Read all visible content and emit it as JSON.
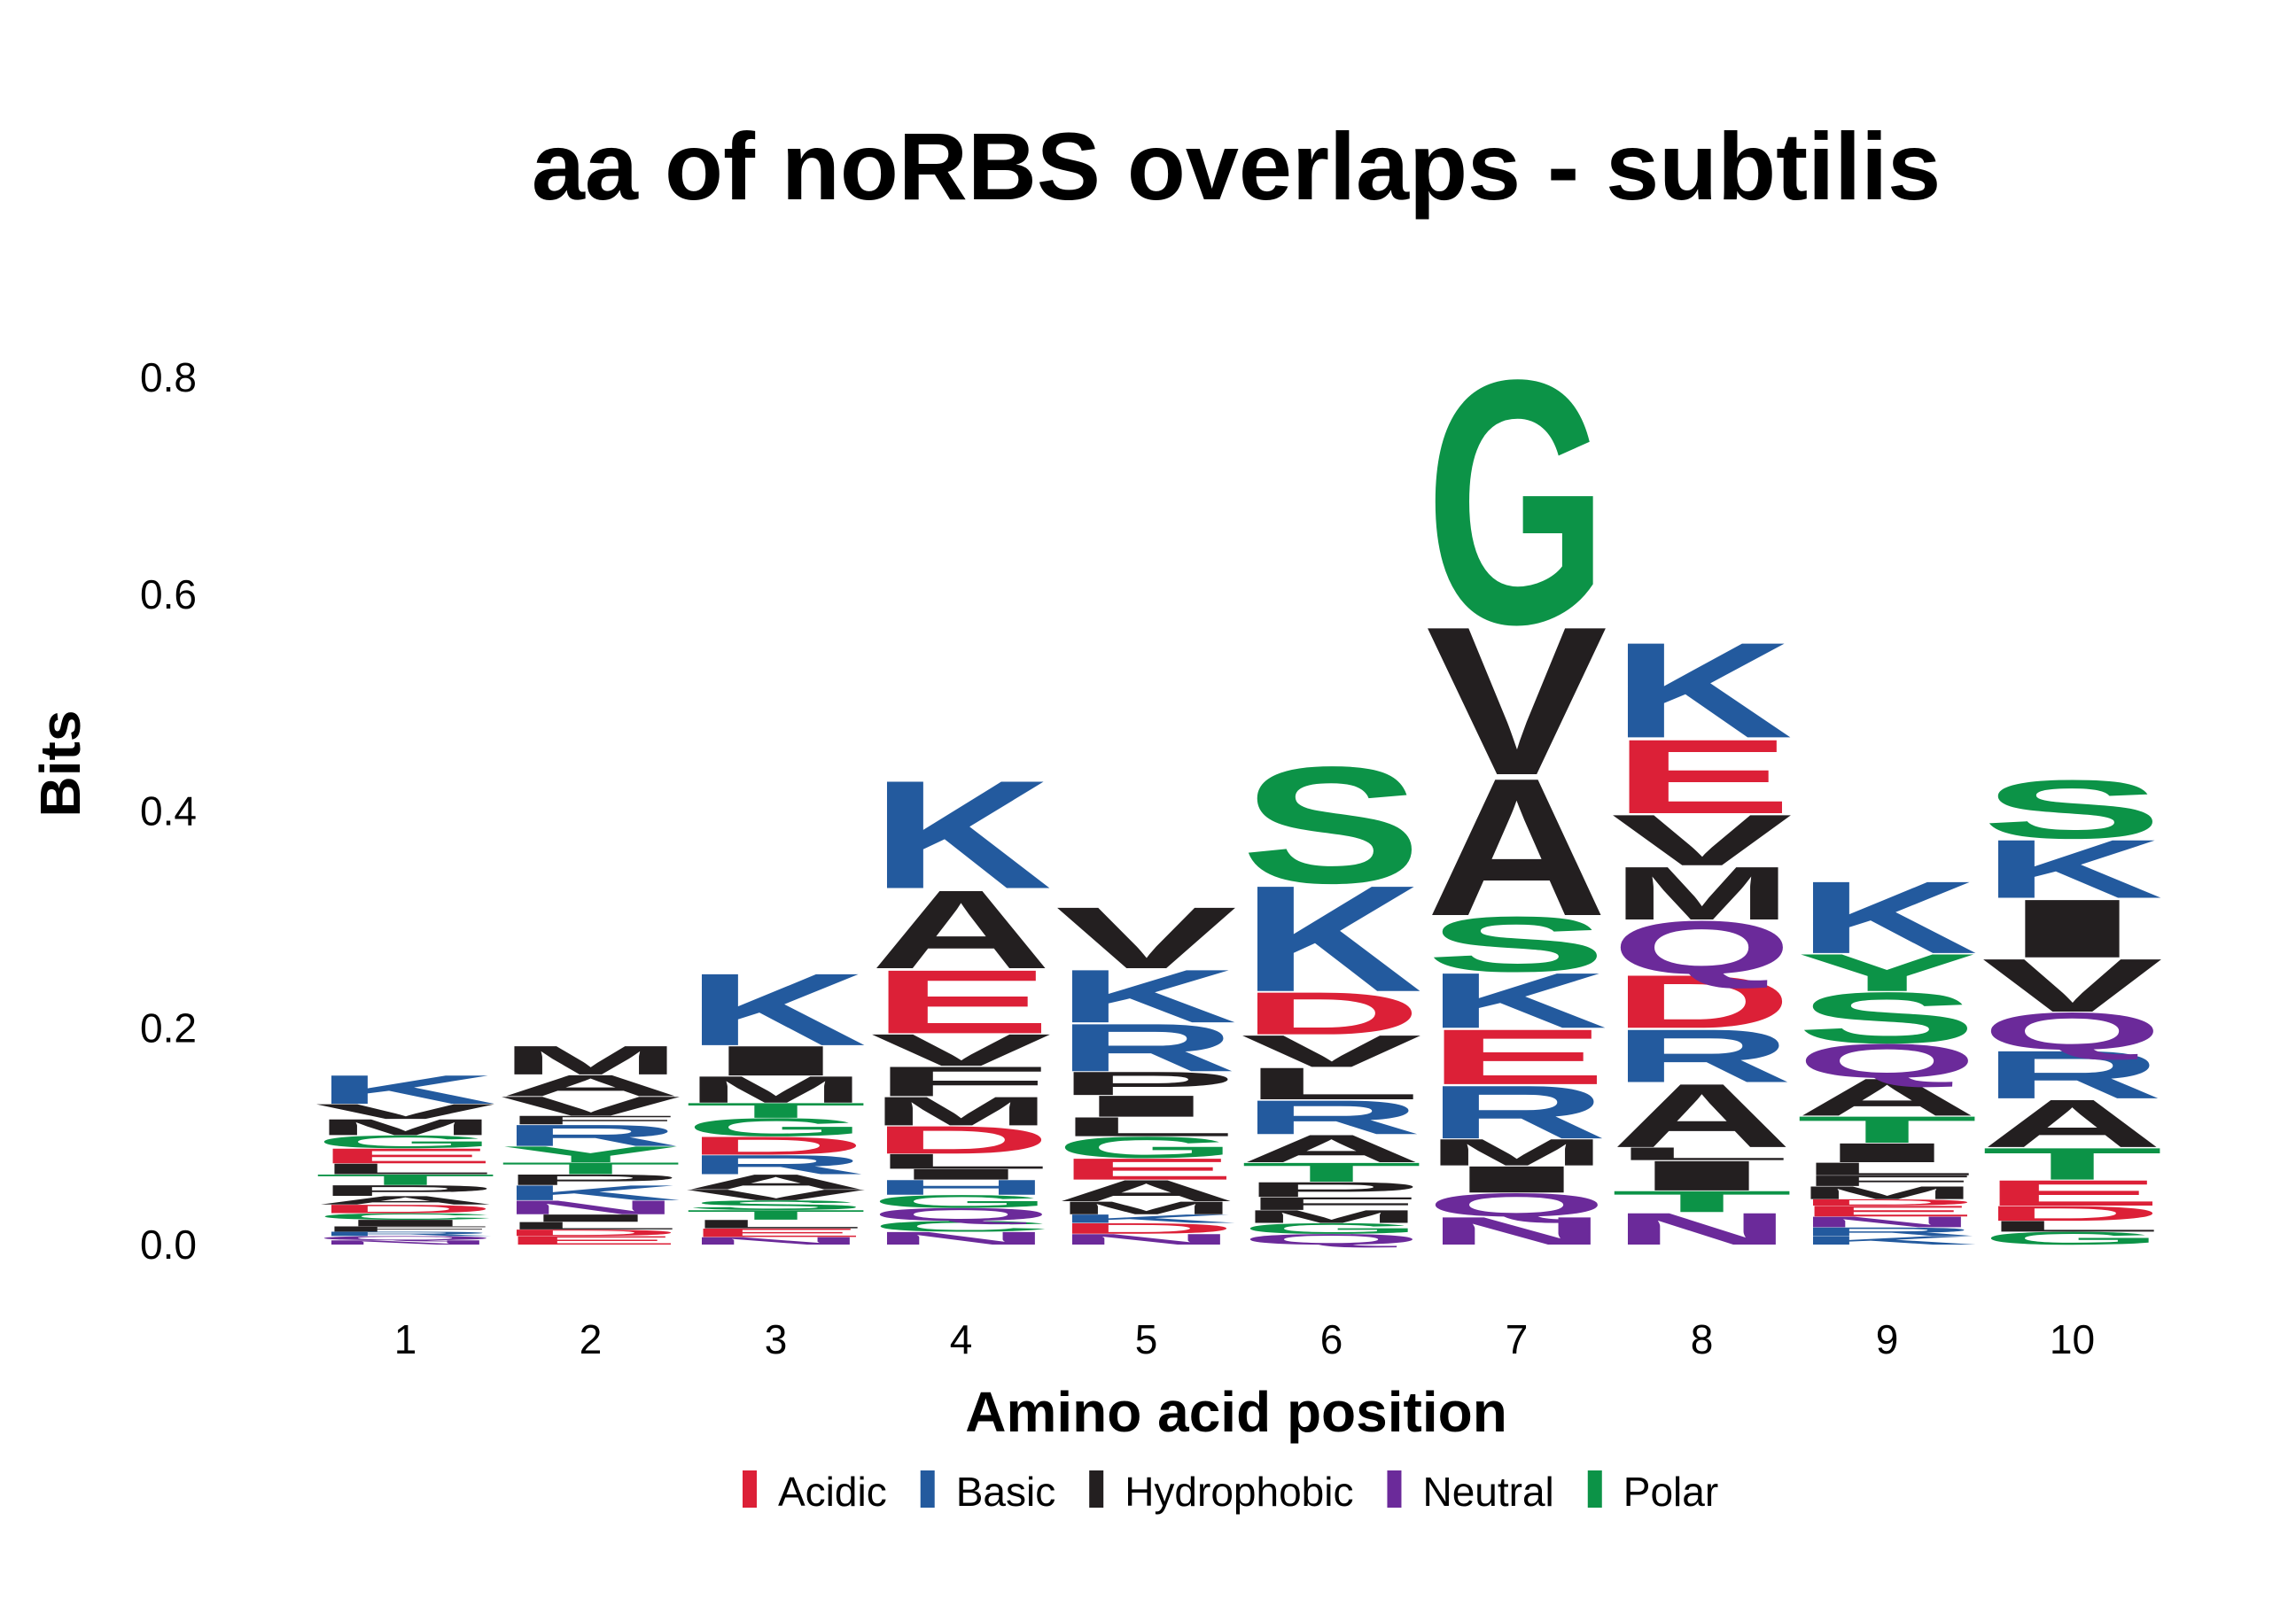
{
  "chart_data": {
    "type": "sequence-logo",
    "title": "aa of noRBS overlaps - subtilis",
    "xlabel": "Amino acid position",
    "ylabel": "Bits",
    "ylim": [
      0,
      0.85
    ],
    "yticks": [
      "0.0",
      "0.2",
      "0.4",
      "0.6",
      "0.8"
    ],
    "categories": [
      "1",
      "2",
      "3",
      "4",
      "5",
      "6",
      "7",
      "8",
      "9",
      "10"
    ],
    "legend_position": "bottom",
    "legend": [
      {
        "name": "Acidic",
        "color": "#DC2037"
      },
      {
        "name": "Basic",
        "color": "#235A9E"
      },
      {
        "name": "Hydrophobic",
        "color": "#231F20"
      },
      {
        "name": "Neutral",
        "color": "#6B2A9A"
      },
      {
        "name": "Polar",
        "color": "#0C9347"
      }
    ],
    "groups": {
      "A": "Hydrophobic",
      "F": "Hydrophobic",
      "I": "Hydrophobic",
      "L": "Hydrophobic",
      "M": "Hydrophobic",
      "P": "Hydrophobic",
      "V": "Hydrophobic",
      "W": "Hydrophobic",
      "D": "Acidic",
      "E": "Acidic",
      "H": "Basic",
      "K": "Basic",
      "R": "Basic",
      "N": "Neutral",
      "Q": "Neutral",
      "C": "Polar",
      "G": "Polar",
      "S": "Polar",
      "T": "Polar",
      "Y": "Polar"
    },
    "positions": [
      {
        "position": "1",
        "letters": [
          {
            "aa": "N",
            "bits": 0.004
          },
          {
            "aa": "Q",
            "bits": 0.004
          },
          {
            "aa": "R",
            "bits": 0.004
          },
          {
            "aa": "F",
            "bits": 0.005
          },
          {
            "aa": "I",
            "bits": 0.006
          },
          {
            "aa": "C",
            "bits": 0.006
          },
          {
            "aa": "D",
            "bits": 0.008
          },
          {
            "aa": "A",
            "bits": 0.008
          },
          {
            "aa": "P",
            "bits": 0.01
          },
          {
            "aa": "T",
            "bits": 0.01
          },
          {
            "aa": "L",
            "bits": 0.01
          },
          {
            "aa": "E",
            "bits": 0.014
          },
          {
            "aa": "G",
            "bits": 0.012
          },
          {
            "aa": "M",
            "bits": 0.015
          },
          {
            "aa": "V",
            "bits": 0.014
          },
          {
            "aa": "K",
            "bits": 0.027
          }
        ]
      },
      {
        "position": "2",
        "letters": [
          {
            "aa": "E",
            "bits": 0.008
          },
          {
            "aa": "D",
            "bits": 0.006
          },
          {
            "aa": "L",
            "bits": 0.007
          },
          {
            "aa": "I",
            "bits": 0.007
          },
          {
            "aa": "N",
            "bits": 0.013
          },
          {
            "aa": "K",
            "bits": 0.014
          },
          {
            "aa": "P",
            "bits": 0.01
          },
          {
            "aa": "T",
            "bits": 0.011
          },
          {
            "aa": "Y",
            "bits": 0.015
          },
          {
            "aa": "R",
            "bits": 0.02
          },
          {
            "aa": "F",
            "bits": 0.008
          },
          {
            "aa": "V",
            "bits": 0.018
          },
          {
            "aa": "A",
            "bits": 0.02
          },
          {
            "aa": "M",
            "bits": 0.027
          }
        ]
      },
      {
        "position": "3",
        "letters": [
          {
            "aa": "N",
            "bits": 0.007
          },
          {
            "aa": "E",
            "bits": 0.008
          },
          {
            "aa": "L",
            "bits": 0.008
          },
          {
            "aa": "T",
            "bits": 0.009
          },
          {
            "aa": "S",
            "bits": 0.009
          },
          {
            "aa": "V",
            "bits": 0.01
          },
          {
            "aa": "A",
            "bits": 0.014
          },
          {
            "aa": "R",
            "bits": 0.018
          },
          {
            "aa": "D",
            "bits": 0.017
          },
          {
            "aa": "G",
            "bits": 0.017
          },
          {
            "aa": "T",
            "bits": 0.014
          },
          {
            "aa": "M",
            "bits": 0.025
          },
          {
            "aa": "I",
            "bits": 0.028
          },
          {
            "aa": "K",
            "bits": 0.068
          }
        ]
      },
      {
        "position": "4",
        "letters": [
          {
            "aa": "N",
            "bits": 0.012
          },
          {
            "aa": "C",
            "bits": 0.01
          },
          {
            "aa": "Q",
            "bits": 0.012
          },
          {
            "aa": "G",
            "bits": 0.012
          },
          {
            "aa": "H",
            "bits": 0.014
          },
          {
            "aa": "I",
            "bits": 0.01
          },
          {
            "aa": "L",
            "bits": 0.014
          },
          {
            "aa": "D",
            "bits": 0.026
          },
          {
            "aa": "M",
            "bits": 0.027
          },
          {
            "aa": "F",
            "bits": 0.028
          },
          {
            "aa": "V",
            "bits": 0.03
          },
          {
            "aa": "E",
            "bits": 0.06
          },
          {
            "aa": "A",
            "bits": 0.074
          },
          {
            "aa": "K",
            "bits": 0.102
          }
        ]
      },
      {
        "position": "5",
        "letters": [
          {
            "aa": "N",
            "bits": 0.01
          },
          {
            "aa": "D",
            "bits": 0.01
          },
          {
            "aa": "K",
            "bits": 0.008
          },
          {
            "aa": "M",
            "bits": 0.012
          },
          {
            "aa": "A",
            "bits": 0.02
          },
          {
            "aa": "E",
            "bits": 0.02
          },
          {
            "aa": "G",
            "bits": 0.02
          },
          {
            "aa": "L",
            "bits": 0.018
          },
          {
            "aa": "I",
            "bits": 0.02
          },
          {
            "aa": "P",
            "bits": 0.022
          },
          {
            "aa": "R",
            "bits": 0.045
          },
          {
            "aa": "K",
            "bits": 0.05
          },
          {
            "aa": "V",
            "bits": 0.058
          }
        ]
      },
      {
        "position": "6",
        "letters": [
          {
            "aa": "Q",
            "bits": 0.01
          },
          {
            "aa": "G",
            "bits": 0.01
          },
          {
            "aa": "M",
            "bits": 0.012
          },
          {
            "aa": "F",
            "bits": 0.012
          },
          {
            "aa": "P",
            "bits": 0.014
          },
          {
            "aa": "T",
            "bits": 0.018
          },
          {
            "aa": "A",
            "bits": 0.026
          },
          {
            "aa": "R",
            "bits": 0.032
          },
          {
            "aa": "L",
            "bits": 0.03
          },
          {
            "aa": "V",
            "bits": 0.03
          },
          {
            "aa": "D",
            "bits": 0.04
          },
          {
            "aa": "K",
            "bits": 0.1
          },
          {
            "aa": "S",
            "bits": 0.11
          }
        ]
      },
      {
        "position": "7",
        "letters": [
          {
            "aa": "N",
            "bits": 0.026
          },
          {
            "aa": "Q",
            "bits": 0.022
          },
          {
            "aa": "I",
            "bits": 0.025
          },
          {
            "aa": "M",
            "bits": 0.025
          },
          {
            "aa": "R",
            "bits": 0.05
          },
          {
            "aa": "E",
            "bits": 0.052
          },
          {
            "aa": "K",
            "bits": 0.052
          },
          {
            "aa": "S",
            "bits": 0.052
          },
          {
            "aa": "A",
            "bits": 0.13
          },
          {
            "aa": "V",
            "bits": 0.14
          },
          {
            "aa": "G",
            "bits": 0.23
          }
        ]
      },
      {
        "position": "8",
        "letters": [
          {
            "aa": "N",
            "bits": 0.03
          },
          {
            "aa": "T",
            "bits": 0.02
          },
          {
            "aa": "I",
            "bits": 0.028
          },
          {
            "aa": "L",
            "bits": 0.012
          },
          {
            "aa": "A",
            "bits": 0.06
          },
          {
            "aa": "R",
            "bits": 0.05
          },
          {
            "aa": "D",
            "bits": 0.05
          },
          {
            "aa": "Q",
            "bits": 0.05
          },
          {
            "aa": "M",
            "bits": 0.05
          },
          {
            "aa": "V",
            "bits": 0.048
          },
          {
            "aa": "E",
            "bits": 0.07
          },
          {
            "aa": "K",
            "bits": 0.09
          }
        ]
      },
      {
        "position": "9",
        "letters": [
          {
            "aa": "K",
            "bits": 0.008
          },
          {
            "aa": "R",
            "bits": 0.008
          },
          {
            "aa": "N",
            "bits": 0.01
          },
          {
            "aa": "E",
            "bits": 0.01
          },
          {
            "aa": "D",
            "bits": 0.006
          },
          {
            "aa": "M",
            "bits": 0.012
          },
          {
            "aa": "F",
            "bits": 0.01
          },
          {
            "aa": "L",
            "bits": 0.012
          },
          {
            "aa": "I",
            "bits": 0.018
          },
          {
            "aa": "T",
            "bits": 0.025
          },
          {
            "aa": "A",
            "bits": 0.035
          },
          {
            "aa": "Q",
            "bits": 0.032
          },
          {
            "aa": "S",
            "bits": 0.048
          },
          {
            "aa": "Y",
            "bits": 0.035
          },
          {
            "aa": "K",
            "bits": 0.068
          }
        ]
      },
      {
        "position": "10",
        "letters": [
          {
            "aa": "G",
            "bits": 0.012
          },
          {
            "aa": "L",
            "bits": 0.01
          },
          {
            "aa": "D",
            "bits": 0.014
          },
          {
            "aa": "E",
            "bits": 0.024
          },
          {
            "aa": "T",
            "bits": 0.03
          },
          {
            "aa": "A",
            "bits": 0.045
          },
          {
            "aa": "R",
            "bits": 0.045
          },
          {
            "aa": "Q",
            "bits": 0.035
          },
          {
            "aa": "V",
            "bits": 0.05
          },
          {
            "aa": "I",
            "bits": 0.055
          },
          {
            "aa": "K",
            "bits": 0.055
          },
          {
            "aa": "S",
            "bits": 0.055
          }
        ]
      }
    ]
  }
}
